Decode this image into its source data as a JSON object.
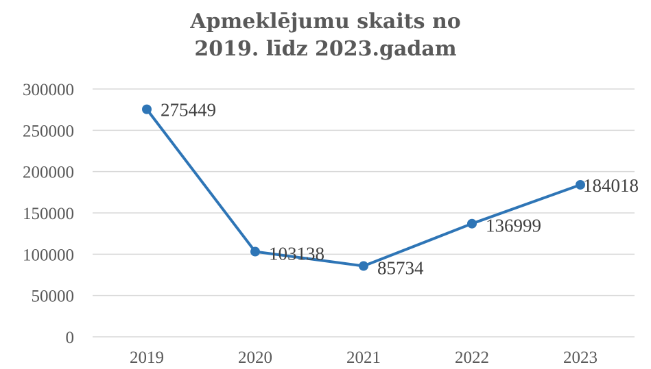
{
  "chart_data": {
    "type": "line",
    "title": [
      "Apmeklējumu skaits no",
      "2019. līdz 2023.gadam"
    ],
    "categories": [
      "2019",
      "2020",
      "2021",
      "2022",
      "2023"
    ],
    "series": [
      {
        "values": [
          275449,
          103138,
          85734,
          136999,
          184018
        ],
        "color": "#2e75b6"
      }
    ],
    "data_labels": [
      "275449",
      "103138",
      "85734",
      "136999",
      "184018"
    ],
    "y_ticks": [
      "0",
      "50000",
      "100000",
      "150000",
      "200000",
      "250000",
      "300000"
    ],
    "ylim": [
      0,
      300000
    ],
    "grid": true,
    "gridline_color": "#d9d9d9",
    "legend": "none"
  }
}
